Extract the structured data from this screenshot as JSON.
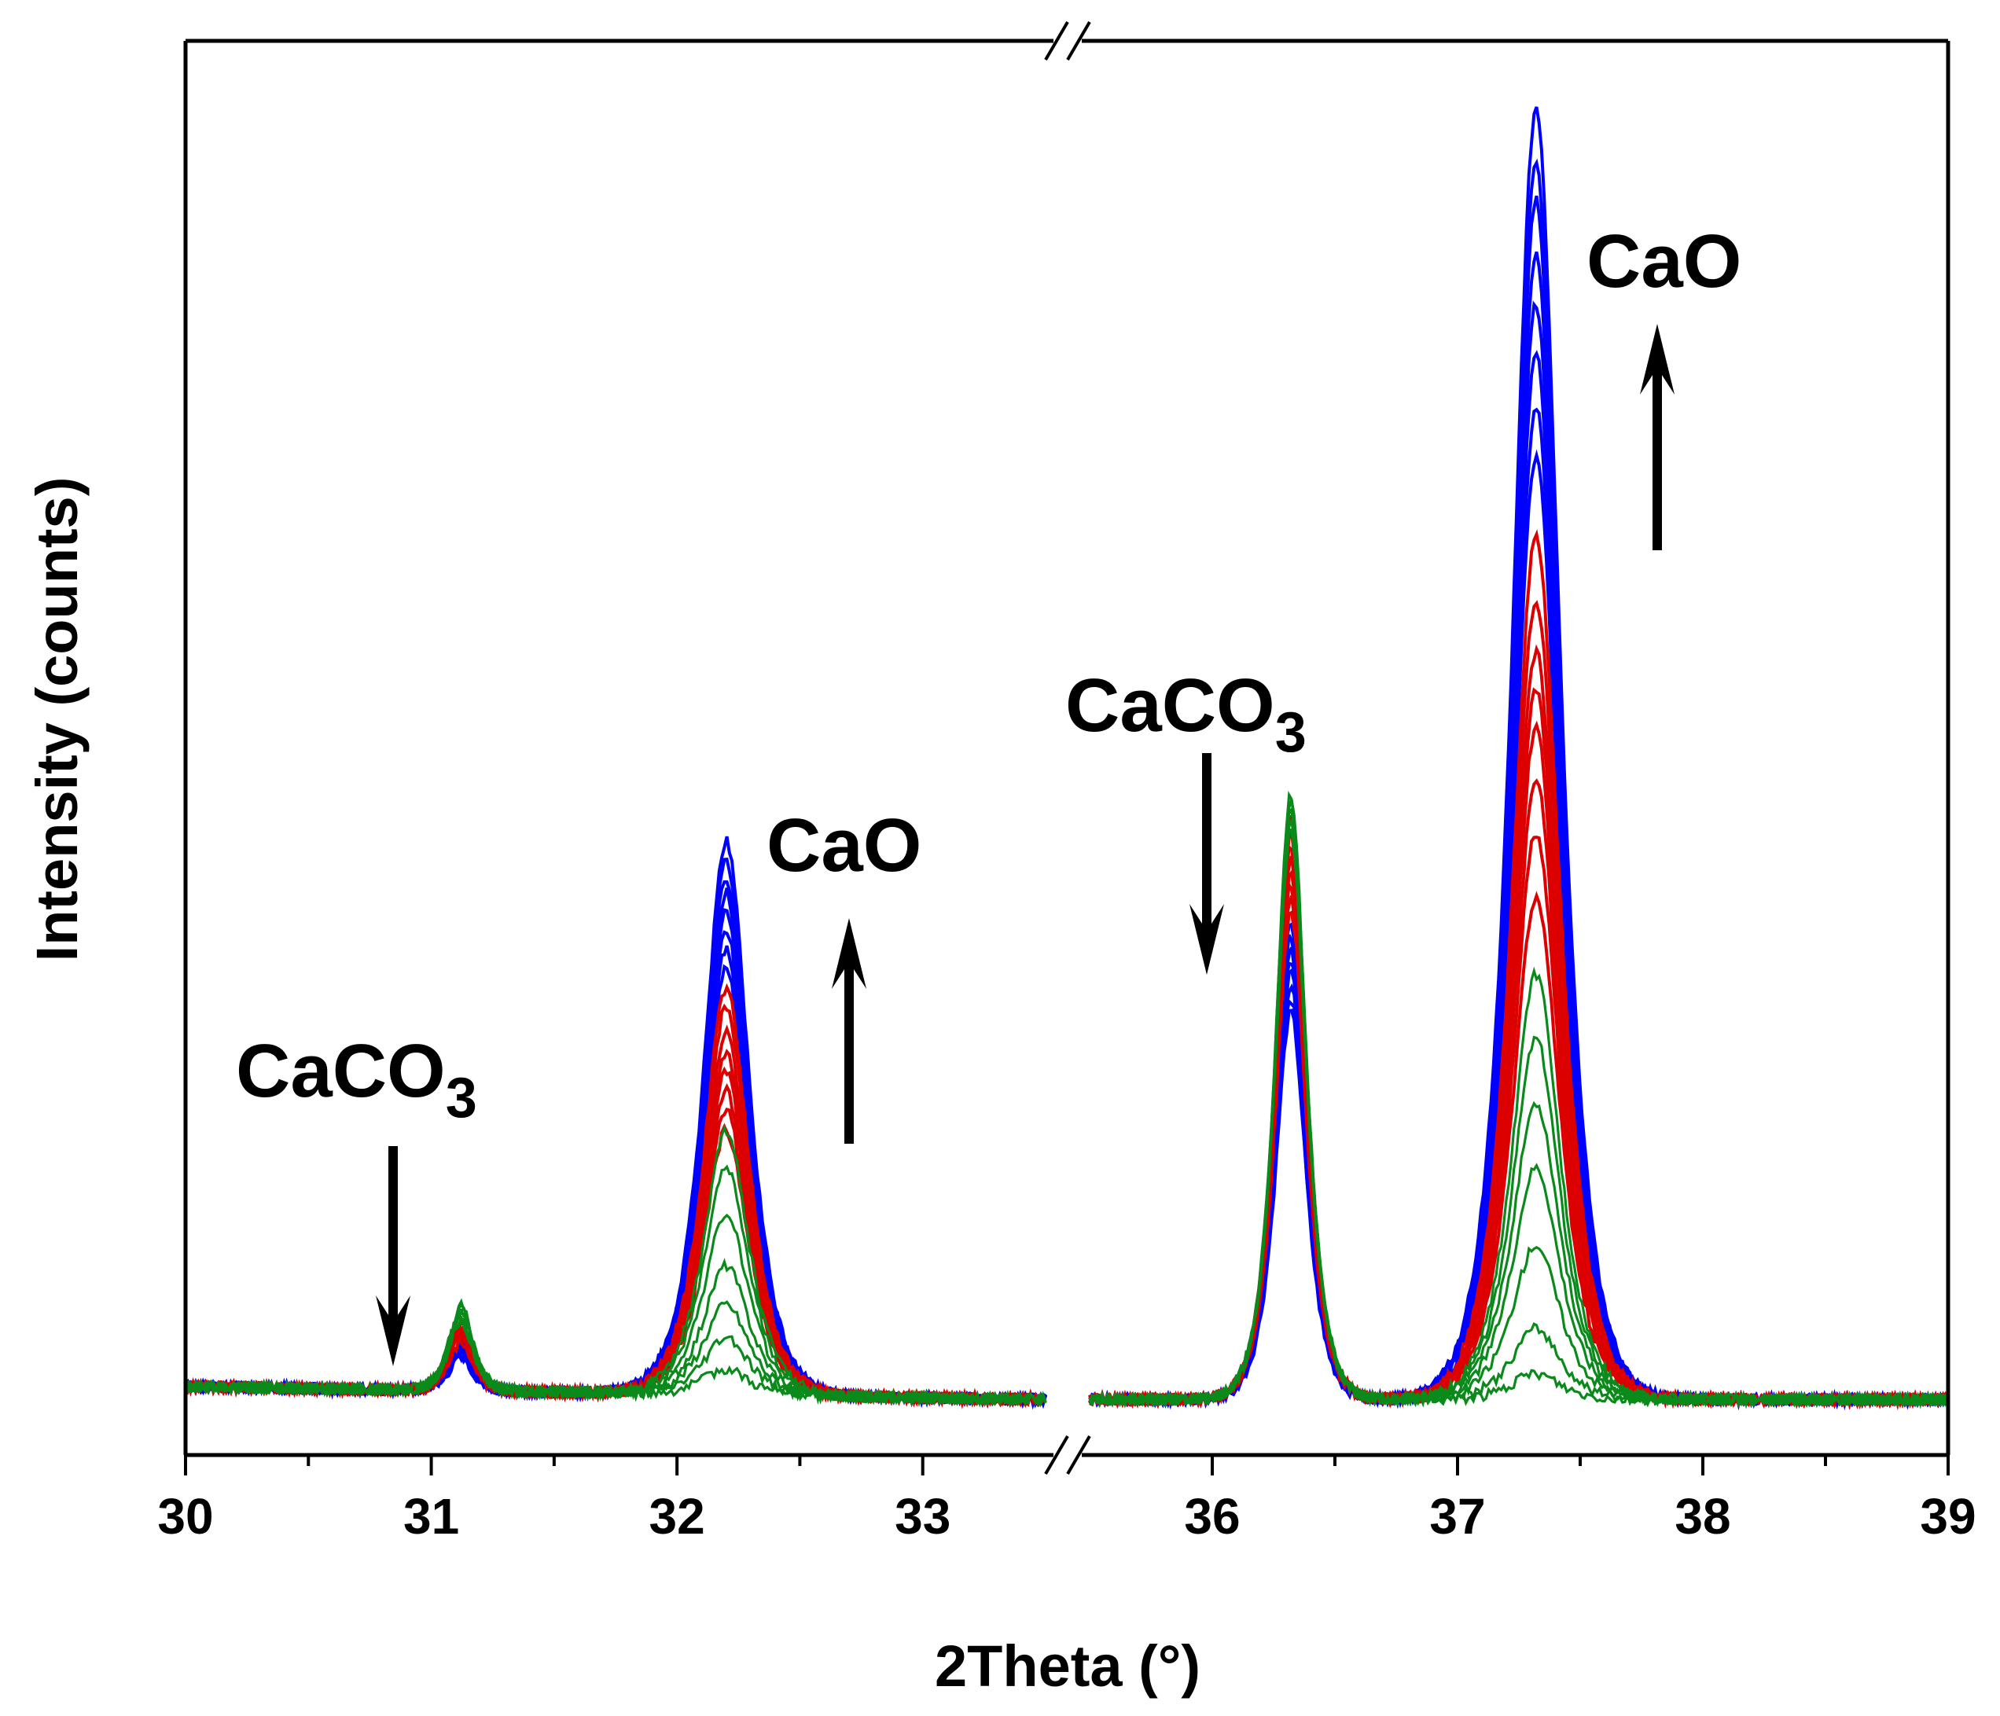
{
  "chart_data": {
    "type": "line",
    "title": "",
    "xlabel": "2Theta (°)",
    "ylabel": "Intensity (counts)",
    "x_segments": [
      {
        "range": [
          30,
          33.5
        ],
        "ticks": [
          "30",
          "31",
          "32",
          "33"
        ],
        "tick_values": [
          30,
          31,
          32,
          33
        ]
      },
      {
        "range": [
          35.5,
          39
        ],
        "ticks": [
          "36",
          "37",
          "38",
          "39"
        ],
        "tick_values": [
          36,
          37,
          38,
          39
        ]
      }
    ],
    "axis_break": true,
    "y_ticks_shown": false,
    "ylim": [
      0,
      1.0
    ],
    "series_groups": [
      {
        "name": "blue",
        "color": "#0000ff",
        "count": 8,
        "peak_31_1": [
          0.026,
          0.028,
          0.03,
          0.031,
          0.033,
          0.034,
          0.035,
          0.036
        ],
        "peak_32_2": [
          0.33,
          0.345,
          0.36,
          0.375,
          0.39,
          0.4,
          0.415,
          0.43
        ],
        "peak_36_3": [
          0.3,
          0.31,
          0.32,
          0.33,
          0.34,
          0.35,
          0.36,
          0.37
        ],
        "peak_37_3": [
          0.73,
          0.77,
          0.81,
          0.85,
          0.89,
          0.93,
          0.96,
          1.0
        ]
      },
      {
        "name": "red",
        "color": "#dd0000",
        "count": 8,
        "peak_31_1": [
          0.038,
          0.04,
          0.042,
          0.044,
          0.046,
          0.048,
          0.05,
          0.052
        ],
        "peak_32_2": [
          0.205,
          0.22,
          0.235,
          0.25,
          0.265,
          0.28,
          0.3,
          0.315
        ],
        "peak_36_3": [
          0.38,
          0.39,
          0.4,
          0.41,
          0.42,
          0.43,
          0.44,
          0.45
        ],
        "peak_37_3": [
          0.39,
          0.44,
          0.48,
          0.52,
          0.55,
          0.58,
          0.62,
          0.67
        ]
      },
      {
        "name": "green",
        "color": "#0a8a1a",
        "count": 7,
        "peak_31_1": [
          0.054,
          0.056,
          0.058,
          0.06,
          0.062,
          0.064,
          0.066
        ],
        "peak_32_2": [
          0.02,
          0.045,
          0.07,
          0.1,
          0.14,
          0.175,
          0.205
        ],
        "peak_36_3": [
          0.44,
          0.445,
          0.45,
          0.455,
          0.46,
          0.465,
          0.47
        ],
        "peak_37_3": [
          0.02,
          0.055,
          0.12,
          0.18,
          0.23,
          0.28,
          0.33
        ]
      }
    ],
    "peak_positions": [
      31.12,
      32.2,
      36.32,
      37.32
    ],
    "annotations": [
      {
        "text": "CaCO",
        "sub": "3",
        "arrow": "down",
        "near_x": 30.85
      },
      {
        "text": "CaO",
        "sub": "",
        "arrow": "up",
        "near_x": 32.7
      },
      {
        "text": "CaCO",
        "sub": "3",
        "arrow": "down",
        "near_x": 36.0
      },
      {
        "text": "CaO",
        "sub": "",
        "arrow": "up",
        "near_x": 37.8
      }
    ],
    "grid": false,
    "legend": "none"
  }
}
